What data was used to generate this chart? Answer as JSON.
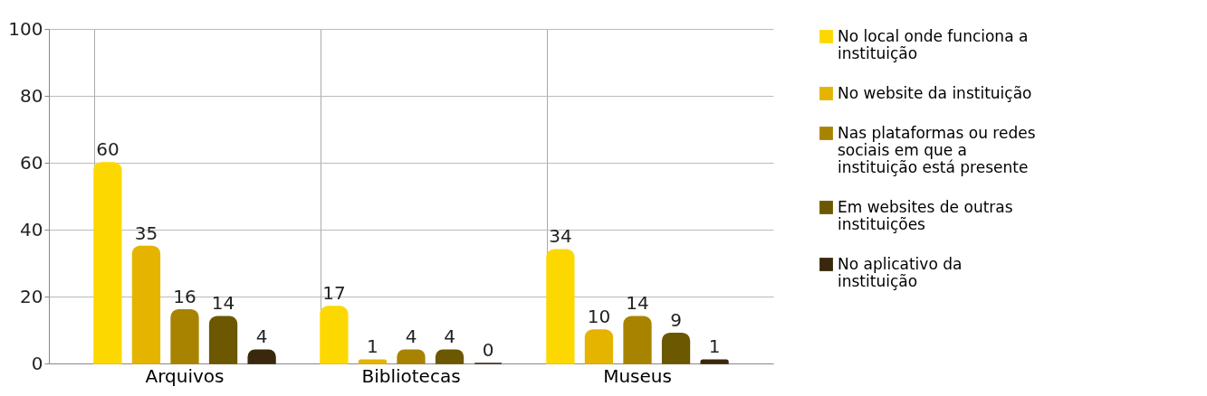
{
  "chart_data": {
    "type": "bar",
    "categories": [
      "Arquivos",
      "Bibliotecas",
      "Museus"
    ],
    "series": [
      {
        "name": "No local onde funciona a instituição",
        "color": "#fdd800",
        "values": [
          60,
          17,
          34
        ]
      },
      {
        "name": "No website da instituição",
        "color": "#e5b400",
        "values": [
          35,
          1,
          10
        ]
      },
      {
        "name": "Nas plataformas ou redes sociais em que a instituição está presente",
        "color": "#a88300",
        "values": [
          16,
          4,
          14
        ]
      },
      {
        "name": "Em websites de outras instituições",
        "color": "#6b5800",
        "values": [
          14,
          4,
          9
        ]
      },
      {
        "name": "No aplicativo da instituição",
        "color": "#3a280c",
        "values": [
          4,
          0,
          1
        ]
      }
    ],
    "ylim": [
      0,
      100
    ],
    "yticks": [
      0,
      20,
      40,
      60,
      80,
      100
    ],
    "grid": true,
    "legend": "right",
    "data_labels": true
  }
}
